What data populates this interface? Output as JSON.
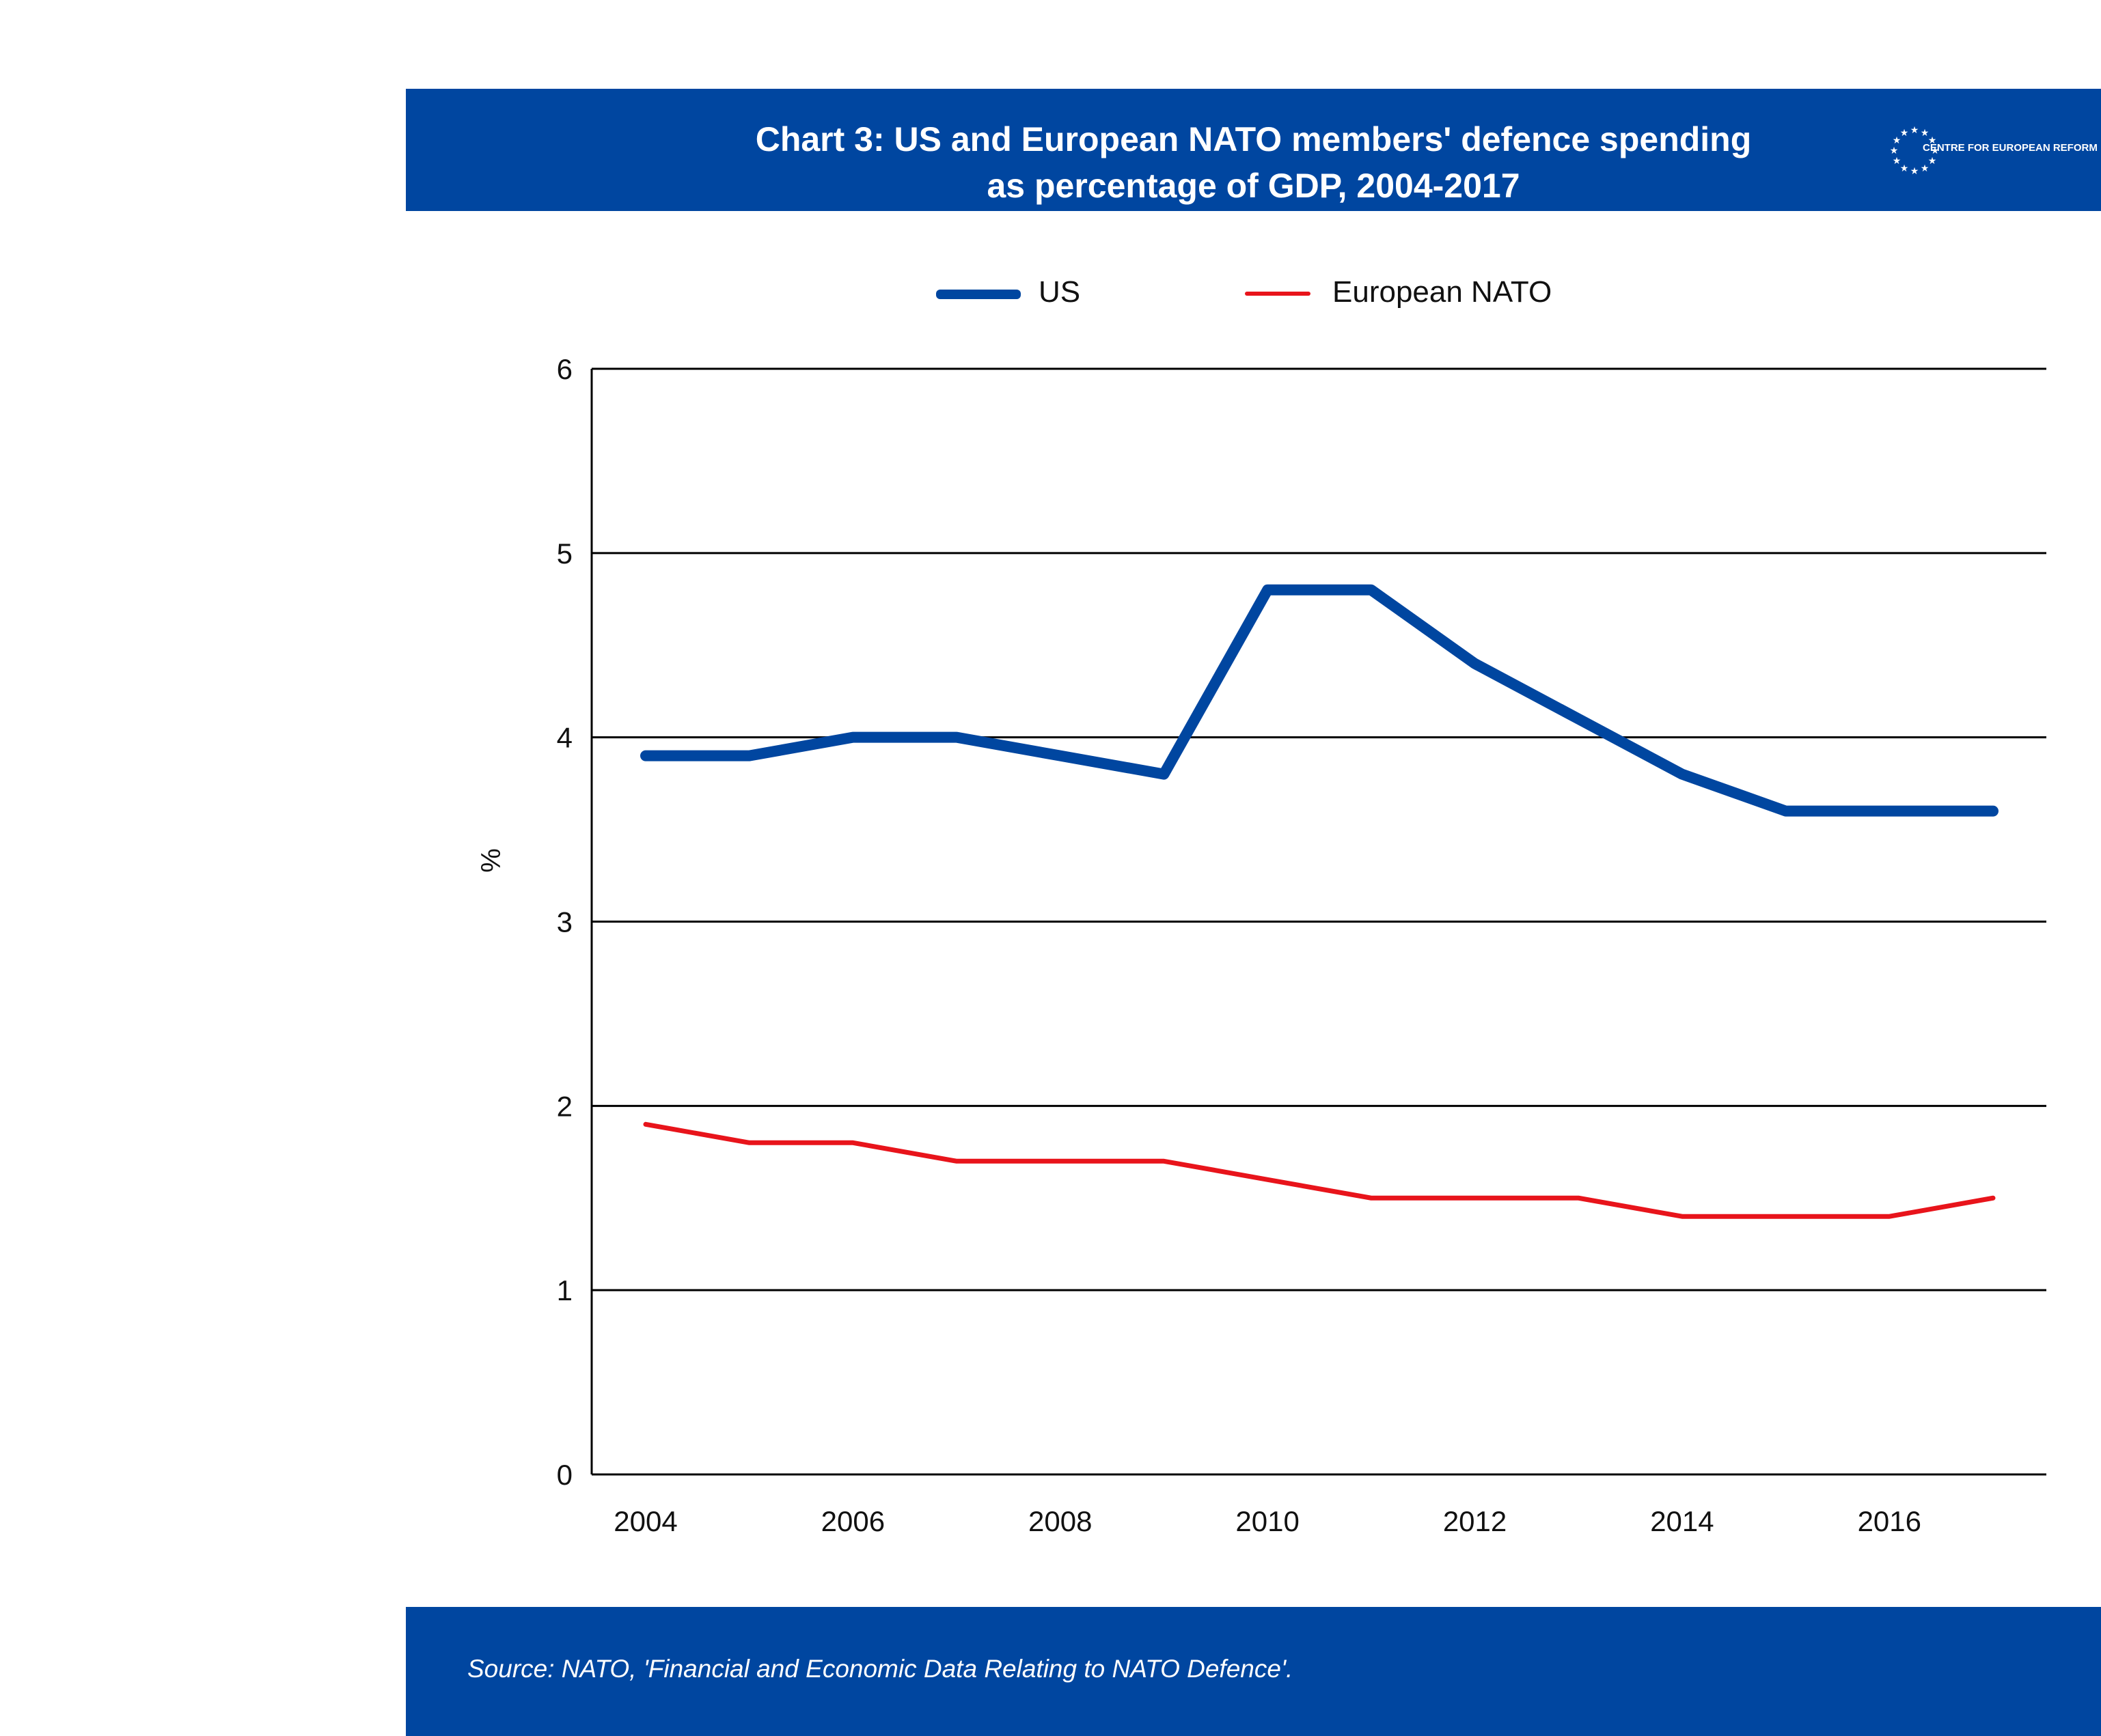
{
  "header": {
    "title_line1": "Chart 3: US and European NATO members' defence spending",
    "title_line2": "as percentage of GDP, 2004-2017",
    "logo_text": "CENTRE FOR EUROPEAN REFORM"
  },
  "footer": {
    "source": "Source: NATO, 'Financial and Economic Data Relating to NATO Defence'."
  },
  "colors": {
    "brand_blue": "#0046a0",
    "us_line": "#0046a0",
    "europe_line": "#e8141b",
    "grid": "#000000"
  },
  "chart_data": {
    "type": "line",
    "title": "Chart 3: US and European NATO members' defence spending as percentage of GDP, 2004-2017",
    "xlabel": "",
    "ylabel": "%",
    "x": [
      2004,
      2005,
      2006,
      2007,
      2008,
      2009,
      2010,
      2011,
      2012,
      2013,
      2014,
      2015,
      2016,
      2017
    ],
    "xticks": [
      "2004",
      "2006",
      "2008",
      "2010",
      "2012",
      "2014",
      "2016"
    ],
    "yticks": [
      0,
      1,
      2,
      3,
      4,
      5,
      6
    ],
    "ylim": [
      0,
      6
    ],
    "grid": "horizontal",
    "legend_position": "top-center",
    "series": [
      {
        "name": "US",
        "color": "#0046a0",
        "values": [
          3.9,
          3.9,
          4.0,
          4.0,
          3.9,
          3.8,
          4.8,
          4.8,
          4.4,
          4.1,
          3.8,
          3.6,
          3.6,
          3.6
        ]
      },
      {
        "name": "European NATO",
        "color": "#e8141b",
        "values": [
          1.9,
          1.8,
          1.8,
          1.7,
          1.7,
          1.7,
          1.6,
          1.5,
          1.5,
          1.5,
          1.4,
          1.4,
          1.4,
          1.5
        ]
      }
    ]
  }
}
